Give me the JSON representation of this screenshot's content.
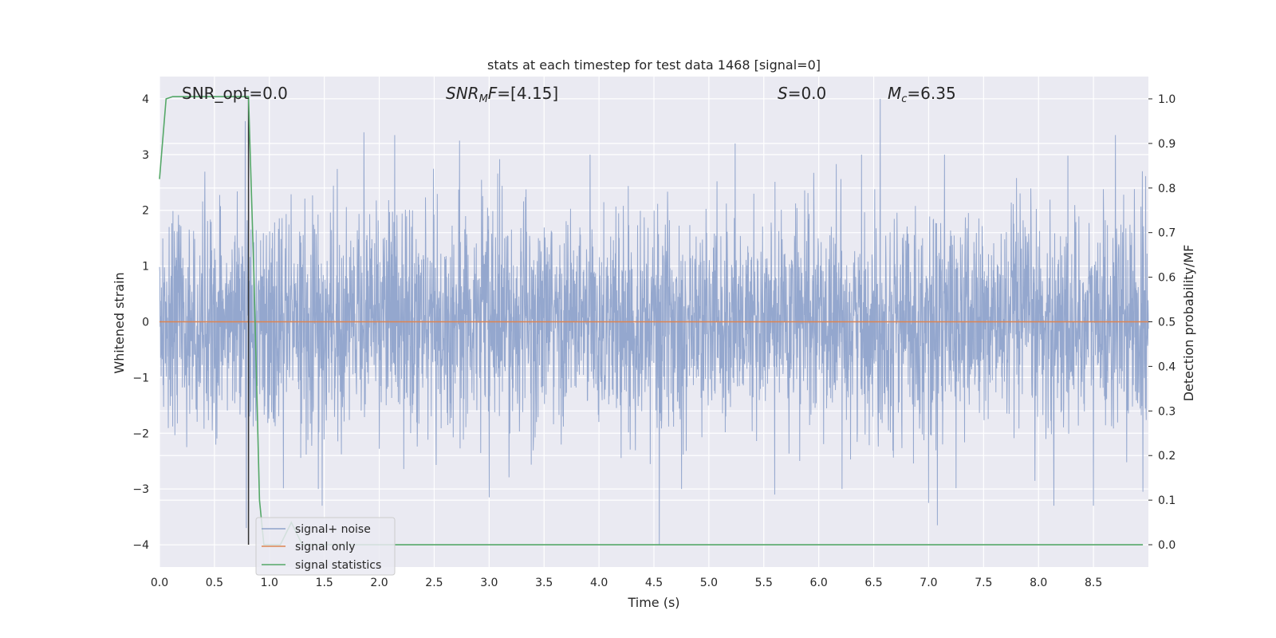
{
  "chart_data": {
    "type": "line",
    "title": "stats at each timestep for test data 1468 [signal=0]",
    "xlabel": "Time (s)",
    "ylabel": "Whitened strain",
    "ylabel_right": "Detection probability/MF",
    "xlim": [
      0.0,
      9.0
    ],
    "ylim": [
      -4.4,
      4.4
    ],
    "ylim_right": [
      -0.05,
      1.05
    ],
    "x_ticks": [
      0.0,
      0.5,
      1.0,
      1.5,
      2.0,
      2.5,
      3.0,
      3.5,
      4.0,
      4.5,
      5.0,
      5.5,
      6.0,
      6.5,
      7.0,
      7.5,
      8.0,
      8.5
    ],
    "x_tick_labels": [
      "0.0",
      "0.5",
      "1.0",
      "1.5",
      "2.0",
      "2.5",
      "3.0",
      "3.5",
      "4.0",
      "4.5",
      "5.0",
      "5.5",
      "6.0",
      "6.5",
      "7.0",
      "7.5",
      "8.0",
      "8.5"
    ],
    "y_ticks": [
      -4,
      -3,
      -2,
      -1,
      0,
      1,
      2,
      3,
      4
    ],
    "y_tick_labels": [
      "−4",
      "−3",
      "−2",
      "−1",
      "0",
      "1",
      "2",
      "3",
      "4"
    ],
    "y_right_ticks": [
      0.0,
      0.1,
      0.2,
      0.3,
      0.4,
      0.5,
      0.6,
      0.7,
      0.8,
      0.9,
      1.0
    ],
    "y_right_tick_labels": [
      "0.0",
      "0.1",
      "0.2",
      "0.3",
      "0.4",
      "0.5",
      "0.6",
      "0.7",
      "0.8",
      "0.9",
      "1.0"
    ],
    "grid": true,
    "legend_position": "lower-left",
    "annotations": [
      {
        "id": "snr-opt",
        "text": "SNR_opt=0.0",
        "x": 0.18
      },
      {
        "id": "snr-mf",
        "text": "=[4.15]",
        "x": 2.6
      },
      {
        "id": "s-stat",
        "text": "=0.0",
        "x": 5.6
      },
      {
        "id": "mc",
        "text": "=6.35",
        "x": 6.6
      }
    ],
    "vline_x": 0.81,
    "series": [
      {
        "name": "signal+ noise",
        "axis": "left",
        "color": "#8fa3cb",
        "kind": "noise",
        "noise_sigma": 0.95,
        "x_range": [
          0.0,
          9.0
        ],
        "peaks": [
          {
            "x": 0.78,
            "y": 3.6
          },
          {
            "x": 0.79,
            "y": -3.7
          },
          {
            "x": 0.81,
            "y": -3.4
          },
          {
            "x": 1.86,
            "y": 3.4
          },
          {
            "x": 2.14,
            "y": 3.35
          },
          {
            "x": 2.73,
            "y": 3.25
          },
          {
            "x": 3.0,
            "y": -3.15
          },
          {
            "x": 1.48,
            "y": -3.3
          },
          {
            "x": 4.55,
            "y": -4.0
          },
          {
            "x": 5.24,
            "y": 3.2
          },
          {
            "x": 5.6,
            "y": -3.1
          },
          {
            "x": 6.56,
            "y": 4.0
          },
          {
            "x": 7.0,
            "y": -3.25
          },
          {
            "x": 7.08,
            "y": -3.65
          },
          {
            "x": 8.14,
            "y": -3.3
          },
          {
            "x": 8.5,
            "y": -3.3
          },
          {
            "x": 8.7,
            "y": 3.35
          },
          {
            "x": 8.95,
            "y": -3.05
          }
        ]
      },
      {
        "name": "signal only",
        "axis": "left",
        "color": "#dd8452",
        "x": [
          0.0,
          9.0
        ],
        "y": [
          0.0,
          0.0
        ]
      },
      {
        "name": "signal statistics",
        "axis": "right",
        "color": "#55a868",
        "x": [
          0.0,
          0.06,
          0.12,
          0.3,
          0.5,
          0.7,
          0.81,
          0.86,
          0.91,
          0.95,
          1.0,
          1.1,
          1.2,
          1.3,
          1.5,
          2.0,
          3.0,
          4.0,
          5.0,
          6.0,
          7.0,
          8.0,
          8.95
        ],
        "y": [
          0.82,
          1.0,
          1.005,
          1.005,
          1.005,
          1.005,
          1.005,
          0.6,
          0.1,
          0.0,
          0.0,
          0.0,
          0.05,
          0.0,
          0.0,
          0.0,
          0.0,
          0.0,
          0.0,
          0.0,
          0.0,
          0.0,
          0.0
        ]
      }
    ]
  }
}
